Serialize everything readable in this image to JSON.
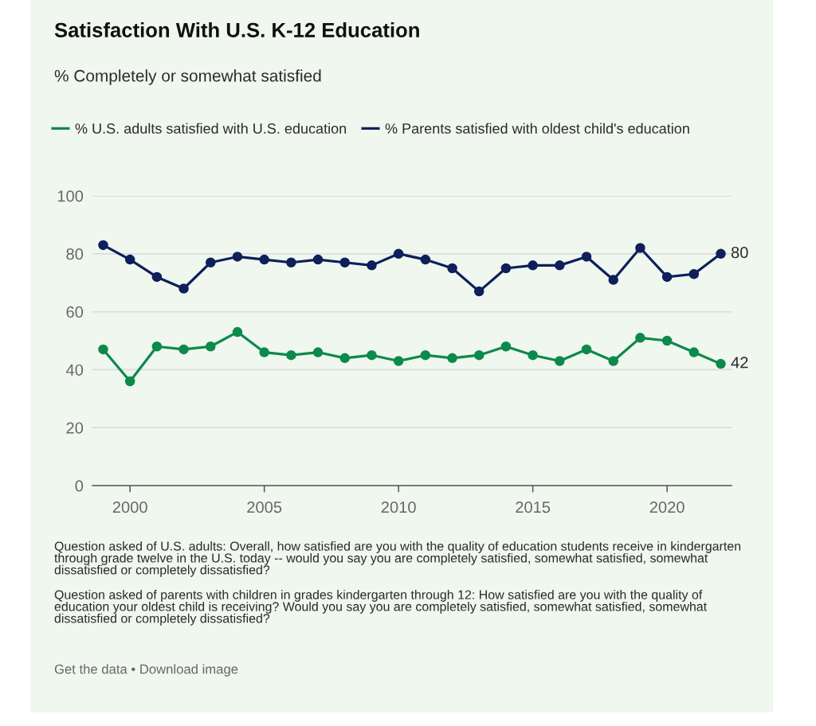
{
  "chart_data": {
    "type": "line",
    "title": "Satisfaction With U.S. K-12 Education",
    "subtitle": "% Completely or somewhat satisfied",
    "x": [
      1999,
      2000,
      2001,
      2002,
      2003,
      2004,
      2005,
      2006,
      2007,
      2008,
      2009,
      2010,
      2011,
      2012,
      2013,
      2014,
      2015,
      2016,
      2017,
      2018,
      2019,
      2020,
      2021,
      2022
    ],
    "series": [
      {
        "name": "% U.S. adults satisfied with U.S. education",
        "color": "#0b8a4b",
        "values": [
          47,
          36,
          48,
          47,
          48,
          53,
          46,
          45,
          46,
          44,
          45,
          43,
          45,
          44,
          45,
          48,
          45,
          43,
          47,
          43,
          51,
          50,
          46,
          42
        ],
        "value_labels": [
          null,
          null,
          null,
          null,
          null,
          null,
          null,
          null,
          null,
          null,
          null,
          null,
          null,
          null,
          null,
          null,
          null,
          null,
          null,
          null,
          null,
          null,
          null,
          "42"
        ]
      },
      {
        "name": "% Parents satisfied with oldest child's education",
        "color": "#0e1f5b",
        "values": [
          83,
          78,
          72,
          68,
          77,
          79,
          78,
          77,
          78,
          77,
          76,
          80,
          78,
          75,
          67,
          75,
          76,
          76,
          79,
          71,
          82,
          72,
          73,
          80
        ],
        "value_labels": [
          null,
          null,
          null,
          null,
          null,
          null,
          null,
          null,
          null,
          null,
          null,
          null,
          null,
          null,
          null,
          null,
          null,
          null,
          null,
          null,
          null,
          null,
          null,
          "80"
        ]
      }
    ],
    "xlim": [
      1998.6,
      2022.4
    ],
    "xticks": [
      2000,
      2005,
      2010,
      2015,
      2020
    ],
    "ylim": [
      0,
      100
    ],
    "yticks": [
      0,
      20,
      40,
      60,
      80,
      100
    ],
    "grid": "y",
    "legend": "top",
    "marker": "circle",
    "line_style": "solid",
    "annotations": [
      "Question asked of U.S. adults: Overall, how satisfied are you with the quality of education students receive in kindergarten through grade twelve in the U.S. today -- would you say you are completely satisfied, somewhat satisfied, somewhat dissatisfied or completely dissatisfied?",
      "Question asked of parents with children in grades kindergarten through 12: How satisfied are you with the quality of education your oldest child is receiving? Would you say you are completely satisfied, somewhat satisfied, somewhat dissatisfied or completely dissatisfied?",
      "Get the data • Download image"
    ]
  }
}
